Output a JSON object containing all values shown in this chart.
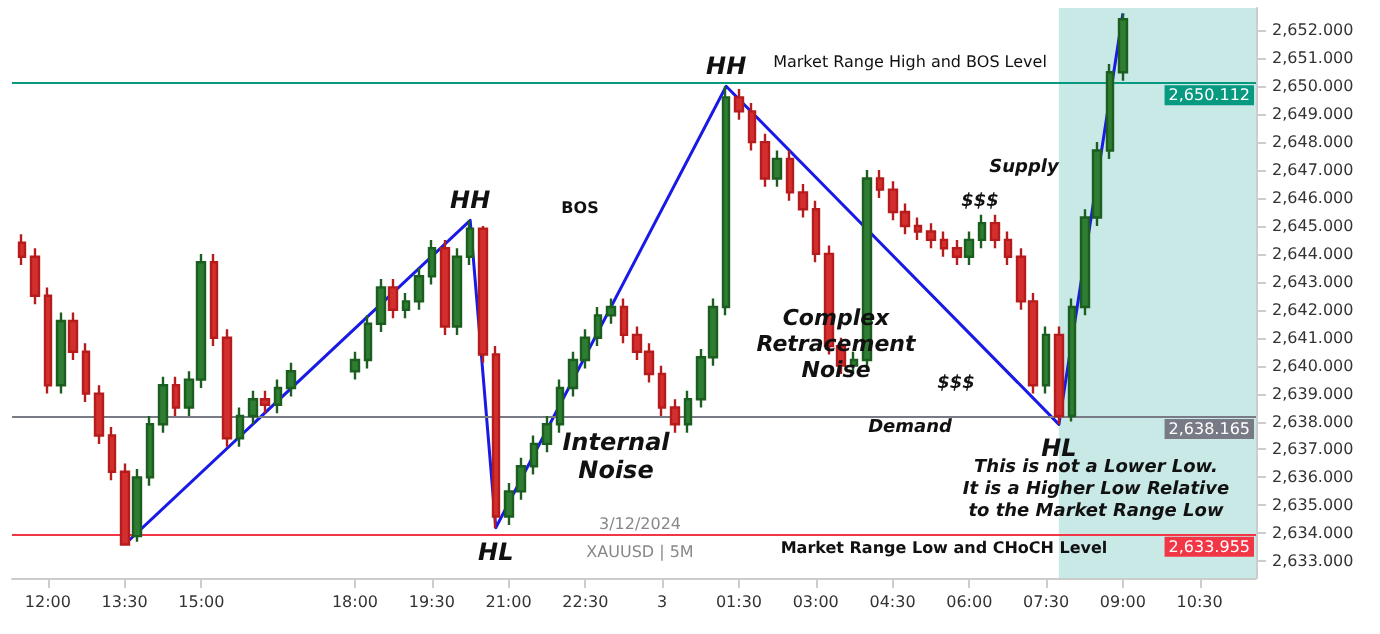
{
  "chart_data": {
    "type": "candlestick",
    "x": [
      "2024-12-02T11:30",
      "2024-12-02T11:45",
      "2024-12-02T12:00",
      "2024-12-02T12:15",
      "2024-12-02T12:30",
      "2024-12-02T12:45",
      "2024-12-02T13:00",
      "2024-12-02T13:15",
      "2024-12-02T13:30",
      "2024-12-02T13:45",
      "2024-12-02T14:00",
      "2024-12-02T14:15",
      "2024-12-02T14:30",
      "2024-12-02T14:45",
      "2024-12-02T15:00",
      "2024-12-02T15:15",
      "2024-12-02T15:30",
      "2024-12-02T15:45",
      "2024-12-02T16:00",
      "2024-12-02T16:15",
      "2024-12-02T16:30",
      "2024-12-02T16:45",
      "2024-12-02T18:00",
      "2024-12-02T18:15",
      "2024-12-02T18:30",
      "2024-12-02T18:45",
      "2024-12-02T19:00",
      "2024-12-02T19:15",
      "2024-12-02T19:30",
      "2024-12-02T19:45",
      "2024-12-02T20:00",
      "2024-12-02T20:15",
      "2024-12-02T20:30",
      "2024-12-02T20:45",
      "2024-12-02T21:00",
      "2024-12-02T21:15",
      "2024-12-02T21:30",
      "2024-12-02T21:45",
      "2024-12-02T22:00",
      "2024-12-02T22:15",
      "2024-12-02T22:30",
      "2024-12-02T22:45",
      "2024-12-02T23:00",
      "2024-12-02T23:15",
      "2024-12-02T23:30",
      "2024-12-02T23:45",
      "2024-12-03T00:00",
      "2024-12-03T00:15",
      "2024-12-03T00:30",
      "2024-12-03T00:45",
      "2024-12-03T01:00",
      "2024-12-03T01:15",
      "2024-12-03T01:30",
      "2024-12-03T01:45",
      "2024-12-03T02:00",
      "2024-12-03T02:15",
      "2024-12-03T02:30",
      "2024-12-03T02:45",
      "2024-12-03T03:00",
      "2024-12-03T03:15",
      "2024-12-03T03:30",
      "2024-12-03T03:45",
      "2024-12-03T04:00",
      "2024-12-03T04:15",
      "2024-12-03T04:30",
      "2024-12-03T04:45",
      "2024-12-03T05:00",
      "2024-12-03T05:15",
      "2024-12-03T05:30",
      "2024-12-03T05:45",
      "2024-12-03T06:00",
      "2024-12-03T06:15",
      "2024-12-03T06:30",
      "2024-12-03T06:45",
      "2024-12-03T07:00",
      "2024-12-03T07:15",
      "2024-12-03T07:30",
      "2024-12-03T07:45",
      "2024-12-03T08:00",
      "2024-12-03T08:15",
      "2024-12-03T08:30",
      "2024-12-03T08:45",
      "2024-12-03T09:00"
    ],
    "ohlc": [
      [
        2644.4,
        2644.7,
        2643.6,
        2643.9
      ],
      [
        2643.9,
        2644.2,
        2642.2,
        2642.5
      ],
      [
        2642.5,
        2642.8,
        2639.0,
        2639.3
      ],
      [
        2639.3,
        2641.9,
        2639.0,
        2641.6
      ],
      [
        2641.6,
        2641.9,
        2640.2,
        2640.5
      ],
      [
        2640.5,
        2640.8,
        2638.7,
        2639.0
      ],
      [
        2639.0,
        2639.3,
        2637.2,
        2637.5
      ],
      [
        2637.5,
        2637.8,
        2635.9,
        2636.2
      ],
      [
        2636.2,
        2636.5,
        2633.6,
        2633.6
      ],
      [
        2633.9,
        2636.3,
        2633.7,
        2636.0
      ],
      [
        2636.0,
        2638.2,
        2635.7,
        2637.9
      ],
      [
        2637.9,
        2639.6,
        2637.6,
        2639.3
      ],
      [
        2639.3,
        2639.6,
        2638.2,
        2638.5
      ],
      [
        2638.5,
        2639.8,
        2638.2,
        2639.5
      ],
      [
        2639.5,
        2644.0,
        2639.2,
        2643.7
      ],
      [
        2643.7,
        2644.0,
        2640.7,
        2641.0
      ],
      [
        2641.0,
        2641.3,
        2637.1,
        2637.4
      ],
      [
        2637.4,
        2638.5,
        2637.1,
        2638.2
      ],
      [
        2638.2,
        2639.1,
        2637.9,
        2638.8
      ],
      [
        2638.8,
        2639.1,
        2638.3,
        2638.6
      ],
      [
        2638.6,
        2639.5,
        2638.3,
        2639.2
      ],
      [
        2639.2,
        2640.1,
        2638.9,
        2639.8
      ],
      [
        2639.8,
        2640.5,
        2639.5,
        2640.2
      ],
      [
        2640.2,
        2641.8,
        2639.9,
        2641.5
      ],
      [
        2641.5,
        2643.1,
        2641.2,
        2642.8
      ],
      [
        2642.8,
        2643.1,
        2641.7,
        2642.0
      ],
      [
        2642.0,
        2642.6,
        2641.7,
        2642.3
      ],
      [
        2642.3,
        2643.5,
        2642.0,
        2643.2
      ],
      [
        2643.2,
        2644.5,
        2642.9,
        2644.2
      ],
      [
        2644.2,
        2644.5,
        2641.1,
        2641.4
      ],
      [
        2641.4,
        2644.2,
        2641.1,
        2643.9
      ],
      [
        2643.9,
        2645.2,
        2643.6,
        2644.9
      ],
      [
        2644.9,
        2645.0,
        2640.1,
        2640.4
      ],
      [
        2640.4,
        2640.7,
        2634.2,
        2634.6
      ],
      [
        2634.6,
        2635.8,
        2634.3,
        2635.5
      ],
      [
        2635.5,
        2636.7,
        2635.2,
        2636.4
      ],
      [
        2636.4,
        2637.5,
        2636.1,
        2637.2
      ],
      [
        2637.2,
        2638.2,
        2636.9,
        2637.9
      ],
      [
        2637.9,
        2639.5,
        2637.6,
        2639.2
      ],
      [
        2639.2,
        2640.5,
        2638.9,
        2640.2
      ],
      [
        2640.2,
        2641.3,
        2639.9,
        2641.0
      ],
      [
        2641.0,
        2642.1,
        2640.7,
        2641.8
      ],
      [
        2641.8,
        2642.4,
        2641.5,
        2642.1
      ],
      [
        2642.1,
        2642.4,
        2640.8,
        2641.1
      ],
      [
        2641.1,
        2641.4,
        2640.2,
        2640.5
      ],
      [
        2640.5,
        2640.8,
        2639.4,
        2639.7
      ],
      [
        2639.7,
        2640.0,
        2638.2,
        2638.5
      ],
      [
        2638.5,
        2638.8,
        2637.6,
        2637.9
      ],
      [
        2637.9,
        2639.1,
        2637.6,
        2638.8
      ],
      [
        2638.8,
        2640.6,
        2638.5,
        2640.3
      ],
      [
        2640.3,
        2642.4,
        2640.0,
        2642.1
      ],
      [
        2642.1,
        2650.0,
        2641.8,
        2649.6
      ],
      [
        2649.6,
        2649.9,
        2648.8,
        2649.1
      ],
      [
        2649.1,
        2649.4,
        2647.7,
        2648.0
      ],
      [
        2648.0,
        2648.3,
        2646.4,
        2646.7
      ],
      [
        2646.7,
        2647.7,
        2646.4,
        2647.4
      ],
      [
        2647.4,
        2647.7,
        2645.9,
        2646.2
      ],
      [
        2646.2,
        2646.5,
        2645.3,
        2645.6
      ],
      [
        2645.6,
        2645.9,
        2643.7,
        2644.0
      ],
      [
        2644.0,
        2644.3,
        2640.4,
        2640.7
      ],
      [
        2640.7,
        2641.0,
        2639.7,
        2640.0
      ],
      [
        2640.0,
        2640.5,
        2639.7,
        2640.2
      ],
      [
        2640.2,
        2647.0,
        2639.9,
        2646.7
      ],
      [
        2646.7,
        2647.0,
        2646.0,
        2646.3
      ],
      [
        2646.3,
        2646.6,
        2645.2,
        2645.5
      ],
      [
        2645.5,
        2645.8,
        2644.7,
        2645.0
      ],
      [
        2645.0,
        2645.3,
        2644.5,
        2644.8
      ],
      [
        2644.8,
        2645.1,
        2644.2,
        2644.5
      ],
      [
        2644.5,
        2644.8,
        2643.9,
        2644.2
      ],
      [
        2644.2,
        2644.5,
        2643.6,
        2643.9
      ],
      [
        2643.9,
        2644.8,
        2643.6,
        2644.5
      ],
      [
        2644.5,
        2645.4,
        2644.2,
        2645.1
      ],
      [
        2645.1,
        2645.4,
        2644.2,
        2644.5
      ],
      [
        2644.5,
        2644.8,
        2643.6,
        2643.9
      ],
      [
        2643.9,
        2644.2,
        2642.0,
        2642.3
      ],
      [
        2642.3,
        2642.6,
        2639.0,
        2639.3
      ],
      [
        2639.3,
        2641.4,
        2639.0,
        2641.1
      ],
      [
        2641.1,
        2641.4,
        2637.9,
        2638.2
      ],
      [
        2638.2,
        2642.4,
        2638.0,
        2642.1
      ],
      [
        2642.1,
        2645.6,
        2641.8,
        2645.3
      ],
      [
        2645.3,
        2648.0,
        2645.0,
        2647.7
      ],
      [
        2647.7,
        2650.8,
        2647.4,
        2650.5
      ],
      [
        2650.5,
        2652.6,
        2650.2,
        2652.4
      ]
    ],
    "series": [
      {
        "type": "line",
        "color": "#1a1ae6",
        "x": [
          "2024-12-02T13:30",
          "2024-12-02T20:15",
          "2024-12-02T20:45",
          "2024-12-03T01:15",
          "2024-12-03T07:45",
          "2024-12-03T09:00"
        ],
        "values": [
          2633.6,
          2645.2,
          2634.2,
          2650.0,
          2637.9,
          2652.6
        ]
      }
    ],
    "xlim": [
      "2024-12-02T11:18",
      "2024-12-03T11:36"
    ],
    "ylim": [
      2632.4,
      2652.8
    ],
    "xticks": [
      {
        "value": "2024-12-02T12:00",
        "label": "12:00"
      },
      {
        "value": "2024-12-02T13:30",
        "label": "13:30"
      },
      {
        "value": "2024-12-02T15:00",
        "label": "15:00"
      },
      {
        "value": "2024-12-02T18:00",
        "label": "18:00"
      },
      {
        "value": "2024-12-02T19:30",
        "label": "19:30"
      },
      {
        "value": "2024-12-02T21:00",
        "label": "21:00"
      },
      {
        "value": "2024-12-02T22:30",
        "label": "22:30"
      },
      {
        "value": "2024-12-03T00:00",
        "label": "3"
      },
      {
        "value": "2024-12-03T01:30",
        "label": "01:30"
      },
      {
        "value": "2024-12-03T03:00",
        "label": "03:00"
      },
      {
        "value": "2024-12-03T04:30",
        "label": "04:30"
      },
      {
        "value": "2024-12-03T06:00",
        "label": "06:00"
      },
      {
        "value": "2024-12-03T07:30",
        "label": "07:30"
      },
      {
        "value": "2024-12-03T09:00",
        "label": "09:00"
      },
      {
        "value": "2024-12-03T10:30",
        "label": "10:30"
      }
    ],
    "yticks": [
      {
        "value": 2633,
        "label": "2,633.000"
      },
      {
        "value": 2634,
        "label": "2,634.000"
      },
      {
        "value": 2635,
        "label": "2,635.000"
      },
      {
        "value": 2636,
        "label": "2,636.000"
      },
      {
        "value": 2637,
        "label": "2,637.000"
      },
      {
        "value": 2638,
        "label": "2,638.000"
      },
      {
        "value": 2639,
        "label": "2,639.000"
      },
      {
        "value": 2640,
        "label": "2,640.000"
      },
      {
        "value": 2641,
        "label": "2,641.000"
      },
      {
        "value": 2642,
        "label": "2,642.000"
      },
      {
        "value": 2643,
        "label": "2,643.000"
      },
      {
        "value": 2644,
        "label": "2,644.000"
      },
      {
        "value": 2645,
        "label": "2,645.000"
      },
      {
        "value": 2646,
        "label": "2,646.000"
      },
      {
        "value": 2647,
        "label": "2,647.000"
      },
      {
        "value": 2648,
        "label": "2,648.000"
      },
      {
        "value": 2649,
        "label": "2,649.000"
      },
      {
        "value": 2650,
        "label": "2,650.000"
      },
      {
        "value": 2651,
        "label": "2,651.000"
      },
      {
        "value": 2652,
        "label": "2,652.000"
      }
    ],
    "ref_lines": [
      {
        "axis": "y",
        "value": 2650.112,
        "label": "2,650.112",
        "color": "#089981"
      },
      {
        "axis": "y",
        "value": 2638.165,
        "label": "2,638.165",
        "color": "#787b86"
      },
      {
        "axis": "y",
        "value": 2633.955,
        "label": "2,633.955",
        "color": "#f23645"
      }
    ],
    "bands": [
      {
        "axis": "x",
        "from": "2024-12-03T07:45",
        "to": "2024-12-03T11:36",
        "color": "#b2dfdb"
      }
    ],
    "annotations": [
      {
        "text": "HH",
        "x": "2024-12-02T20:15",
        "y": 2645.2
      },
      {
        "text": "HH",
        "x": "2024-12-03T01:15",
        "y": 2650.0
      },
      {
        "text": "HL",
        "x": "2024-12-02T20:45",
        "y": 2634.2
      },
      {
        "text": "HL",
        "x": "2024-12-03T07:45",
        "y": 2637.9
      },
      "BOS",
      "Market Range High and BOS Level",
      "Supply",
      "$$$",
      "$$$",
      "Demand",
      "Internal\nNoise",
      "Complex\nRetracement\nNoise",
      "This is not a Lower Low.\nIt is a Higher Low Relative\nto the Market Range Low",
      "Market Range Low and CHoCH Level",
      "3/12/2024",
      "XAUUSD | 5M"
    ],
    "grid": false
  }
}
